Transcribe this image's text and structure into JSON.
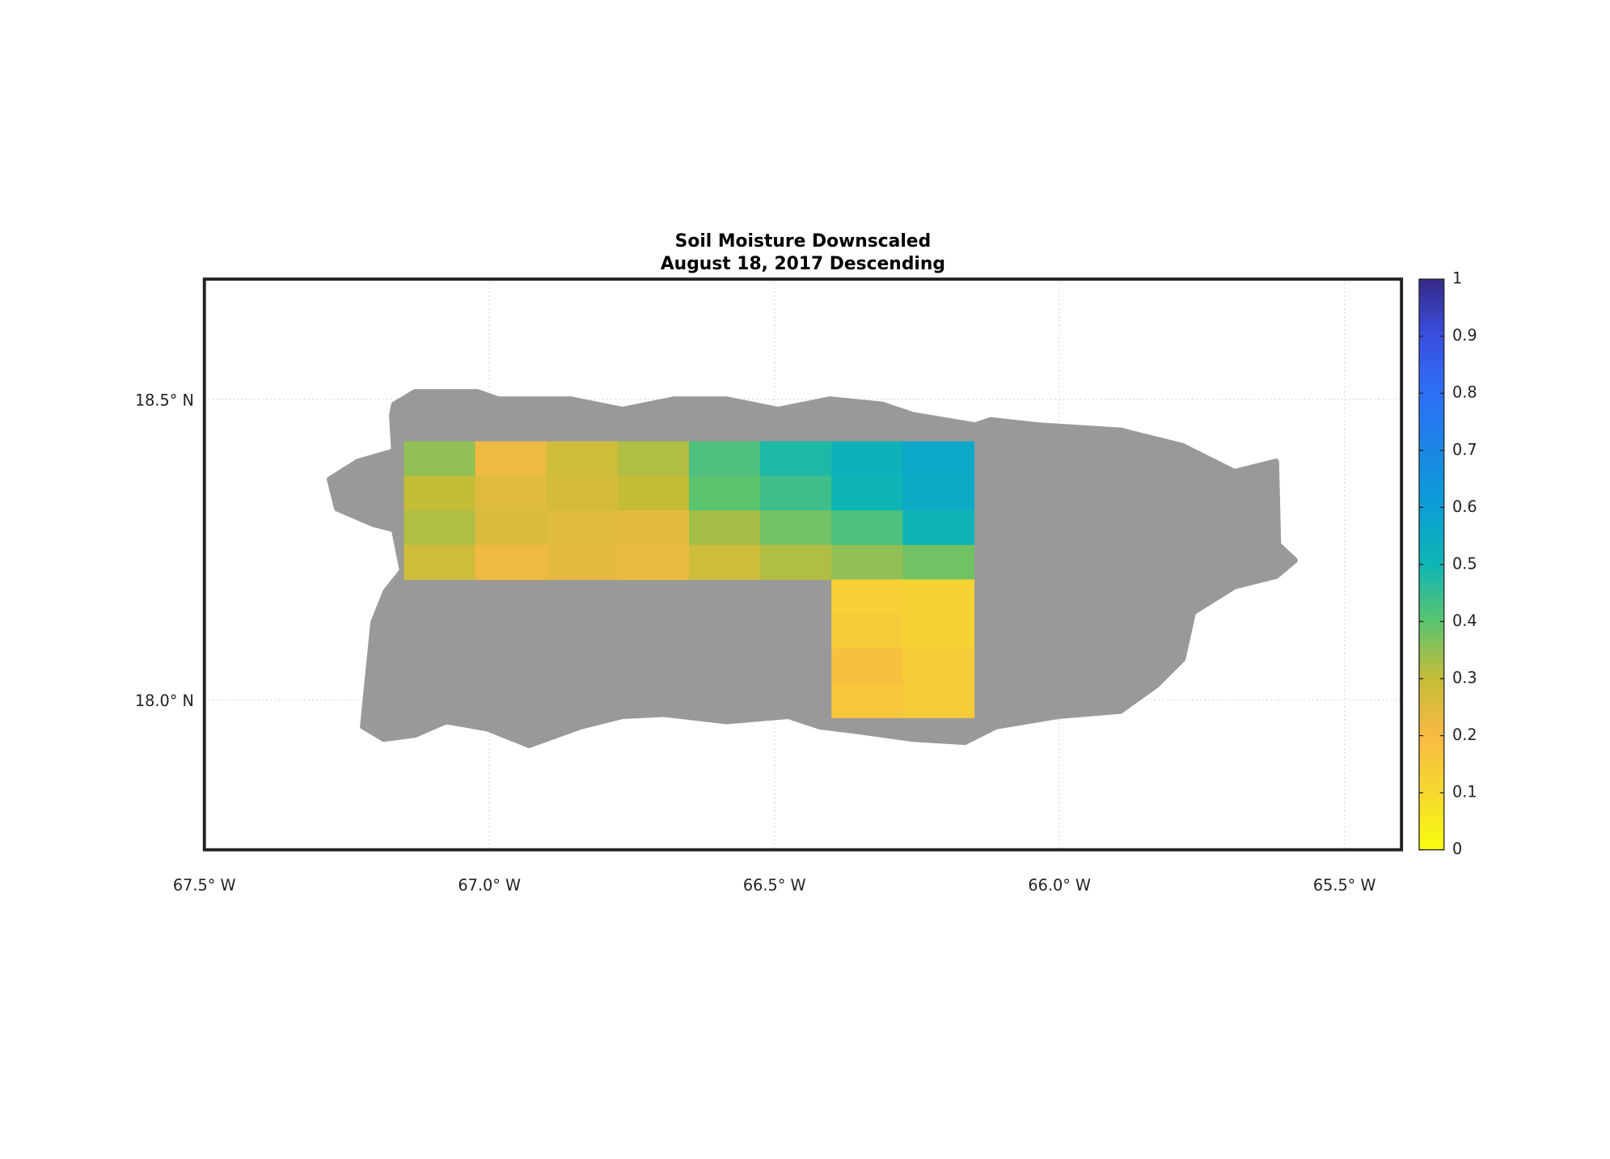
{
  "chart_data": {
    "type": "heatmap",
    "title": "Soil Moisture Downscaled",
    "subtitle": "August 18, 2017 Descending",
    "xlim": [
      -67.5,
      -65.4
    ],
    "ylim": [
      17.75,
      18.7
    ],
    "xticks": [
      {
        "value": -67.5,
        "label": "67.5° W"
      },
      {
        "value": -67.0,
        "label": "67.0° W"
      },
      {
        "value": -66.5,
        "label": "66.5° W"
      },
      {
        "value": -66.0,
        "label": "66.0° W"
      },
      {
        "value": -65.5,
        "label": "65.5° W"
      }
    ],
    "yticks": [
      {
        "value": 18.0,
        "label": "18.0° N"
      },
      {
        "value": 18.5,
        "label": "18.5° N"
      }
    ],
    "grid": true,
    "x": [
      -67.0875,
      -66.9625,
      -66.8375,
      -66.7125,
      -66.5875,
      -66.4625,
      -66.3375,
      -66.2125
    ],
    "y": [
      18.40125,
      18.34375,
      18.28625,
      18.22875,
      18.17125,
      18.11375,
      18.05625,
      17.99875
    ],
    "values": [
      [
        0.35,
        0.22,
        0.28,
        0.32,
        0.42,
        0.48,
        0.52,
        0.56
      ],
      [
        0.3,
        0.25,
        0.27,
        0.3,
        0.4,
        0.44,
        0.5,
        0.55
      ],
      [
        0.32,
        0.26,
        0.25,
        0.24,
        0.33,
        0.38,
        0.42,
        0.5
      ],
      [
        0.28,
        0.22,
        0.24,
        0.23,
        0.28,
        0.32,
        0.35,
        0.38
      ],
      [
        null,
        null,
        null,
        null,
        null,
        null,
        0.13,
        0.12
      ],
      [
        null,
        null,
        null,
        null,
        null,
        null,
        0.15,
        0.12
      ],
      [
        null,
        null,
        null,
        null,
        null,
        null,
        0.18,
        0.15
      ],
      [
        null,
        null,
        null,
        null,
        null,
        null,
        0.16,
        0.15
      ]
    ],
    "clim": [
      0,
      1
    ],
    "cticks": [
      0,
      0.1,
      0.2,
      0.3,
      0.4,
      0.5,
      0.6,
      0.7,
      0.8,
      0.9,
      1
    ],
    "colormap": [
      "#f9fb0e",
      "#f6d92f",
      "#f8ba43",
      "#c5bc38",
      "#5cc46f",
      "#0fb5b4",
      "#0b9fd5",
      "#1a87e4",
      "#2d6ff7",
      "#3a4fe0",
      "#352a87"
    ]
  }
}
